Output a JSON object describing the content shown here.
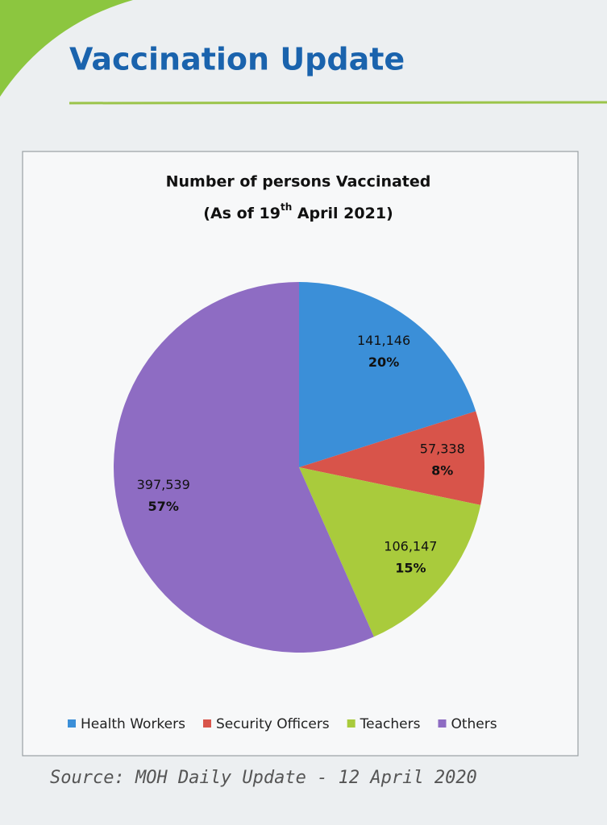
{
  "header": {
    "title": "Vaccination Update"
  },
  "source": "Source: MOH Daily Update - 12 April 2020",
  "chart_data": {
    "type": "pie",
    "title": "Number of persons Vaccinated",
    "subtitle": [
      "(As of 19",
      "th",
      " April 2021)"
    ],
    "categories": [
      "Health Workers",
      "Security Officers",
      "Teachers",
      "Others"
    ],
    "values": [
      141146,
      57338,
      106147,
      397539
    ],
    "value_labels": [
      "141,146",
      "57,338",
      "106,147",
      "397,539"
    ],
    "percents": [
      20,
      8,
      15,
      57
    ],
    "percent_labels": [
      "20%",
      "8%",
      "15%",
      "57%"
    ],
    "colors": [
      "#3b8fd8",
      "#d8544a",
      "#a9cb3c",
      "#8e6cc3"
    ],
    "legend": "bottom"
  }
}
